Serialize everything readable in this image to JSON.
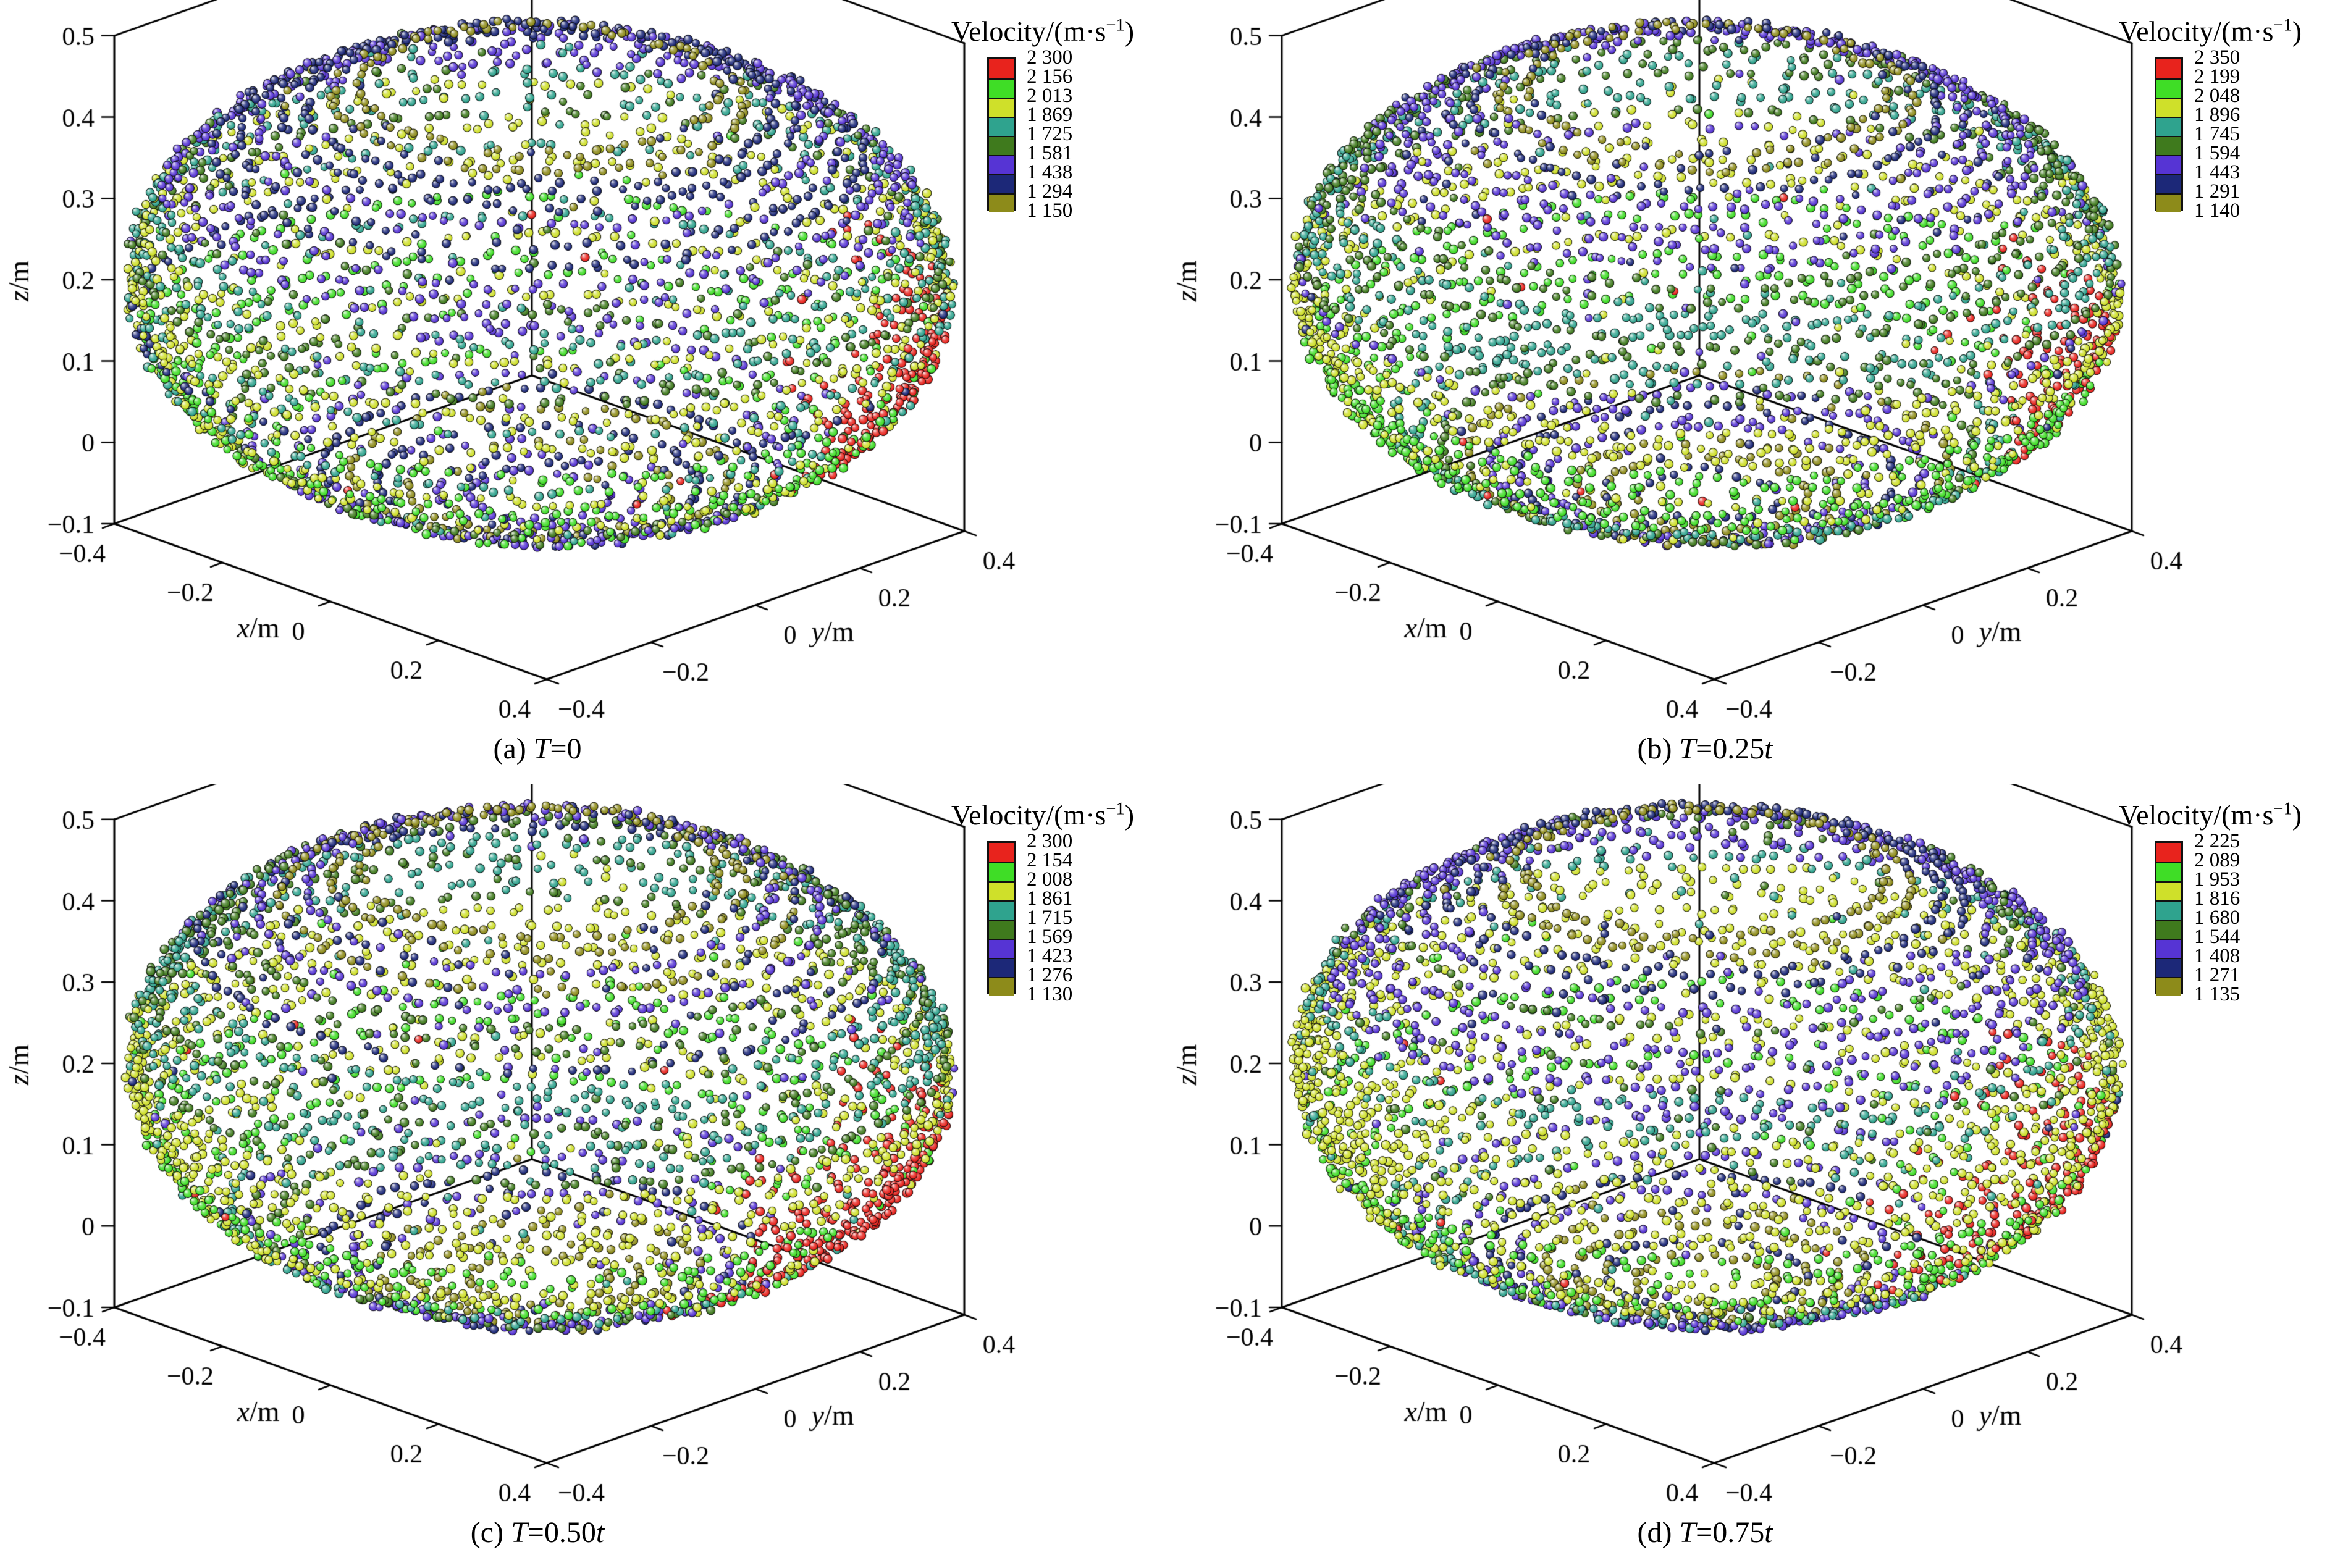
{
  "figure": {
    "colorbar_title": "Velocity/(m·s⁻¹)",
    "colorbar_title_parts": [
      "Velocity/(m·s",
      "−1",
      ")"
    ],
    "palette": {
      "red": "#e8231d",
      "green": "#3fdd26",
      "yellow": "#cfe02a",
      "teal": "#2fa38e",
      "dark_green": "#3f7a1d",
      "purple": "#5634d4",
      "navy": "#1c2878",
      "olive": "#8d8b1a"
    },
    "colorbar_order": [
      "red",
      "green",
      "yellow",
      "teal",
      "dark_green",
      "purple",
      "navy",
      "olive"
    ],
    "axes": {
      "x_label_italic": "x",
      "x_label_unit": "/m",
      "y_label_italic": "y",
      "y_label_unit": "/m",
      "z_label_italic": "z",
      "z_label_unit": "/m",
      "x_ticks": [
        "−0.4",
        "−0.2",
        "0",
        "0.2",
        "0.4"
      ],
      "y_ticks": [
        "−0.4",
        "−0.2",
        "0",
        "0.2",
        "0.4"
      ],
      "z_ticks": [
        "0.5",
        "0.4",
        "0.3",
        "0.2",
        "0.1",
        "0",
        "−0.1"
      ],
      "x_range": [
        -0.4,
        0.4
      ],
      "y_range": [
        -0.4,
        0.4
      ],
      "z_range": [
        -0.1,
        0.5
      ]
    }
  },
  "chart_data": [
    {
      "type": "scatter",
      "projection": "3d",
      "panel": "a",
      "caption_parts": [
        "(a) ",
        "T",
        "=0",
        ""
      ],
      "colorbar_tick_labels": [
        "2 300",
        "2 156",
        "2 013",
        "1 869",
        "1 725",
        "1 581",
        "1 438",
        "1 294",
        "1 150"
      ],
      "velocity_range": [
        1150,
        2300
      ],
      "xlabel": "x/m",
      "ylabel": "y/m",
      "zlabel": "z/m",
      "description": "Spherical particle cloud coloured by velocity: olive/navy/purple low-velocity rings at top and bottom rims, teal and dark-green upper band, wide yellow mid band, bright-green lower-mid band, high-velocity red patch on right side"
    },
    {
      "type": "scatter",
      "projection": "3d",
      "panel": "b",
      "caption_parts": [
        "(b) ",
        "T",
        "=0.25",
        "t"
      ],
      "colorbar_tick_labels": [
        "2 350",
        "2 199",
        "2 048",
        "1 896",
        "1 745",
        "1 594",
        "1 443",
        "1 291",
        "1 140"
      ],
      "velocity_range": [
        1140,
        2350
      ],
      "xlabel": "x/m",
      "ylabel": "y/m",
      "zlabel": "z/m",
      "description": "Same banded velocity structure; smaller red high-velocity patch at right edge"
    },
    {
      "type": "scatter",
      "projection": "3d",
      "panel": "c",
      "caption_parts": [
        "(c) ",
        "T",
        "=0.50",
        "t"
      ],
      "colorbar_tick_labels": [
        "2 300",
        "2 154",
        "2 008",
        "1 861",
        "1 715",
        "1 569",
        "1 423",
        "1 276",
        "1 130"
      ],
      "velocity_range": [
        1130,
        2300
      ],
      "xlabel": "x/m",
      "ylabel": "y/m",
      "zlabel": "z/m",
      "description": "Same banded velocity structure; red high-velocity region spread along lower-right side"
    },
    {
      "type": "scatter",
      "projection": "3d",
      "panel": "d",
      "caption_parts": [
        "(d) ",
        "T",
        "=0.75",
        "t"
      ],
      "colorbar_tick_labels": [
        "2 225",
        "2 089",
        "1 953",
        "1 816",
        "1 680",
        "1 544",
        "1 408",
        "1 271",
        "1 135"
      ],
      "velocity_range": [
        1135,
        2225
      ],
      "xlabel": "x/m",
      "ylabel": "y/m",
      "zlabel": "z/m",
      "description": "Same banded velocity structure; red high-velocity patch on lower-right side, broader green band"
    }
  ]
}
